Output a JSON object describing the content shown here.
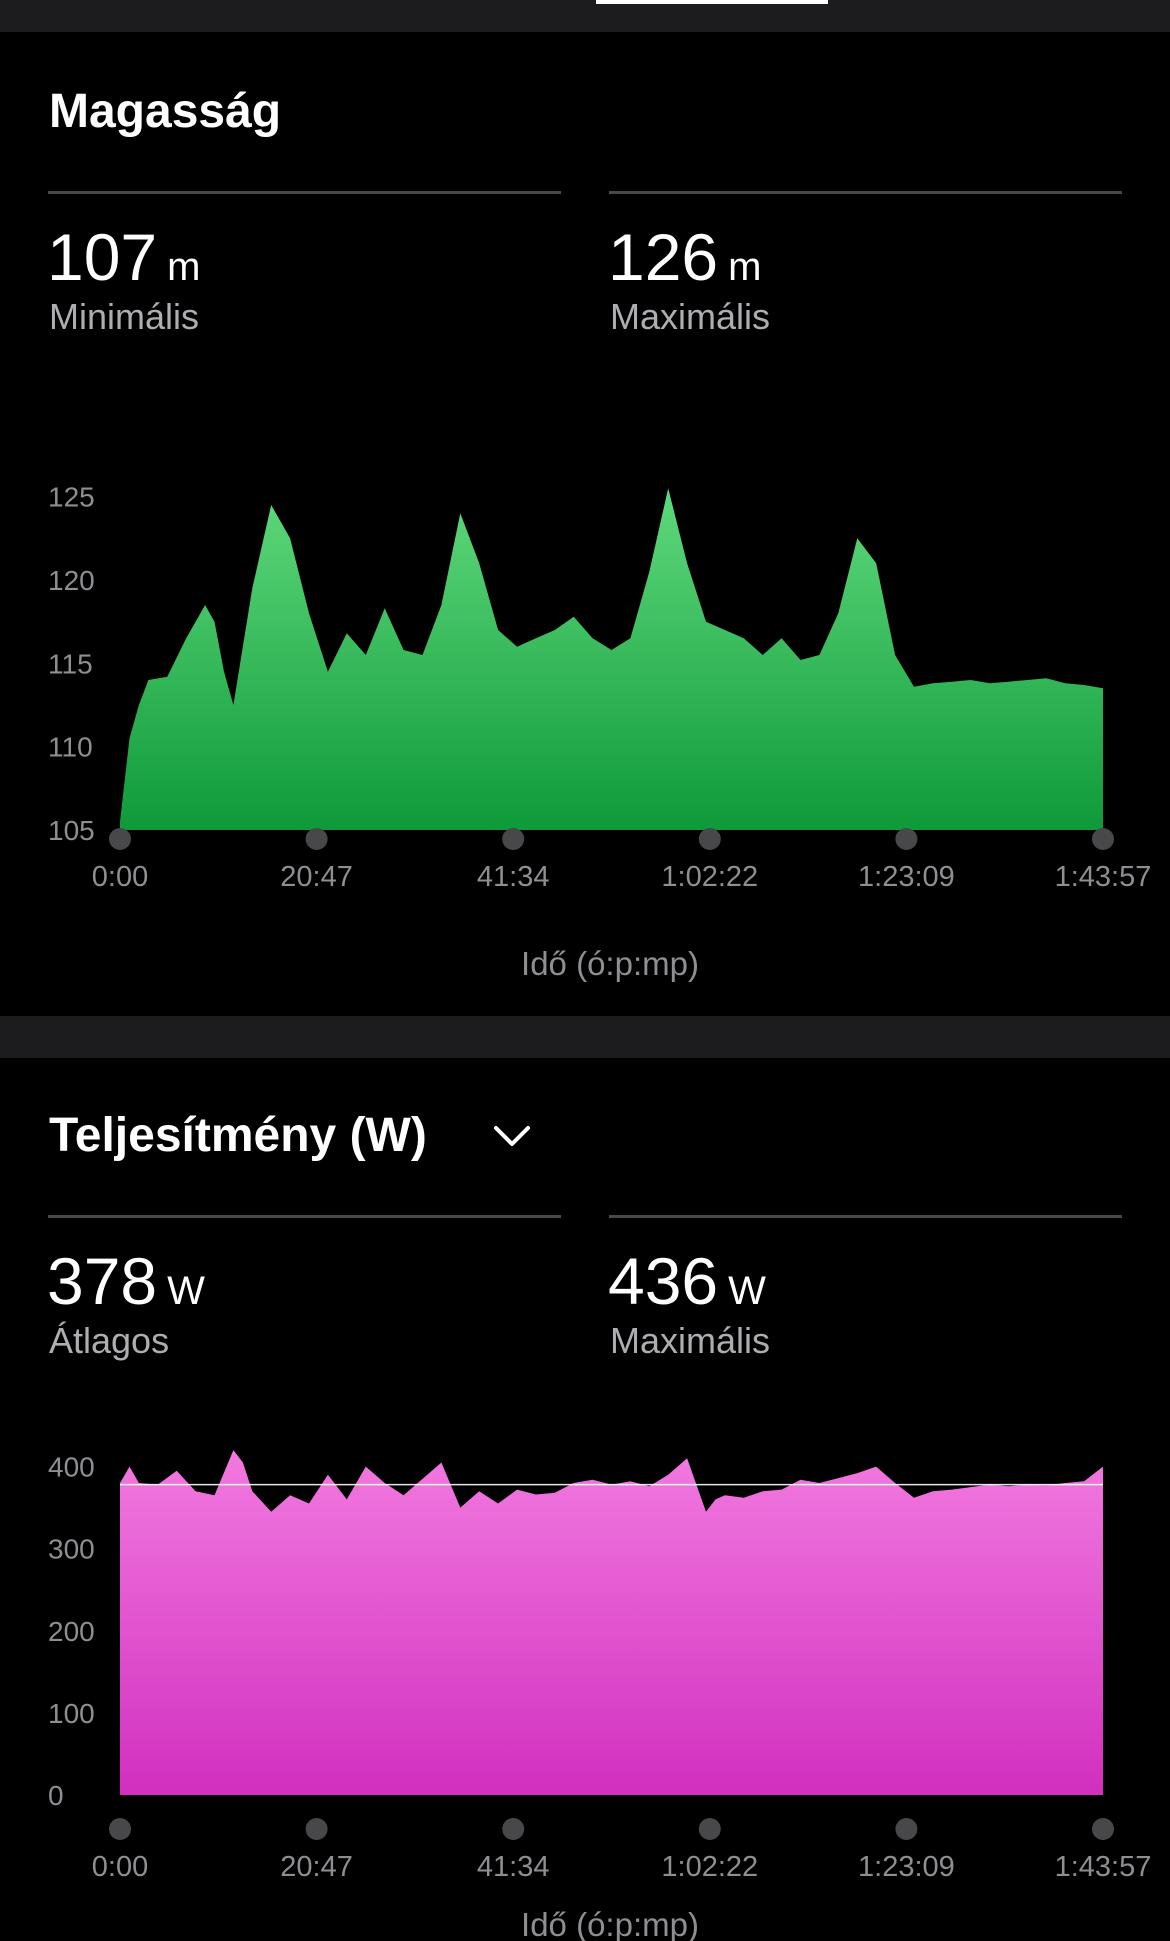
{
  "elevation": {
    "title": "Magasság",
    "stats": [
      {
        "value": "107",
        "unit": "m",
        "label": "Minimális"
      },
      {
        "value": "126",
        "unit": "m",
        "label": "Maximális"
      }
    ]
  },
  "power": {
    "title": "Teljesítmény (W)",
    "stats": [
      {
        "value": "378",
        "unit": "W",
        "label": "Átlagos"
      },
      {
        "value": "436",
        "unit": "W",
        "label": "Maximális"
      }
    ]
  },
  "colors": {
    "elevation_top": "#5fd97c",
    "elevation_bottom": "#0f9a3a",
    "power_top": "#f27ae0",
    "power_bottom": "#d12fbf"
  },
  "chart_data": [
    {
      "type": "area",
      "xlabel": "Idő (ó:p:mp)",
      "ylabel": "",
      "ylim": [
        105,
        126
      ],
      "yticks": [
        "105",
        "110",
        "115",
        "120",
        "125"
      ],
      "xticks": [
        "0:00",
        "20:47",
        "41:34",
        "1:02:22",
        "1:23:09",
        "1:43:57"
      ],
      "x": [
        0,
        1,
        2,
        3,
        5,
        7,
        9,
        10,
        11,
        12,
        14,
        16,
        18,
        20,
        22,
        24,
        26,
        28,
        30,
        32,
        34,
        36,
        38,
        40,
        42,
        44,
        46,
        48,
        50,
        52,
        54,
        56,
        58,
        60,
        62,
        64,
        66,
        68,
        70,
        72,
        74,
        76,
        78,
        80,
        82,
        84,
        86,
        88,
        90,
        92,
        94,
        96,
        98,
        100,
        102,
        104
      ],
      "values": [
        105.5,
        110.5,
        112.5,
        114,
        114.2,
        116.5,
        118.5,
        117.5,
        114.5,
        112.5,
        119.5,
        124.5,
        122.5,
        118,
        114.5,
        116.8,
        115.5,
        118.3,
        115.8,
        115.5,
        118.5,
        124,
        121,
        117,
        116,
        116.5,
        117,
        117.8,
        116.5,
        115.8,
        116.5,
        120.5,
        125.5,
        121,
        117.5,
        117,
        116.5,
        115.5,
        116.5,
        115.2,
        115.5,
        118,
        122.5,
        121,
        115.5,
        113.6,
        113.8,
        113.9,
        114,
        113.8,
        113.9,
        114,
        114.1,
        113.8,
        113.7,
        113.5
      ]
    },
    {
      "type": "area",
      "xlabel": "Idő (ó:p:mp)",
      "ylabel": "",
      "ylim": [
        0,
        436
      ],
      "yticks": [
        "0",
        "100",
        "200",
        "300",
        "400"
      ],
      "xticks": [
        "0:00",
        "20:47",
        "41:34",
        "1:02:22",
        "1:23:09",
        "1:43:57"
      ],
      "average": 378,
      "x": [
        0,
        1,
        2,
        4,
        6,
        8,
        10,
        12,
        13,
        14,
        16,
        18,
        20,
        22,
        24,
        26,
        28,
        30,
        32,
        34,
        36,
        38,
        40,
        42,
        44,
        46,
        48,
        50,
        52,
        54,
        56,
        58,
        60,
        62,
        63,
        64,
        66,
        68,
        70,
        72,
        74,
        76,
        78,
        80,
        82,
        84,
        86,
        88,
        90,
        92,
        94,
        96,
        98,
        100,
        102,
        104
      ],
      "values": [
        380,
        400,
        380,
        378,
        395,
        370,
        365,
        420,
        405,
        370,
        345,
        365,
        355,
        390,
        360,
        400,
        380,
        365,
        385,
        405,
        350,
        370,
        355,
        372,
        366,
        368,
        380,
        384,
        378,
        382,
        376,
        390,
        410,
        345,
        360,
        365,
        362,
        370,
        372,
        384,
        380,
        386,
        392,
        400,
        380,
        362,
        370,
        372,
        375,
        378,
        376,
        378,
        377,
        380,
        382,
        400
      ]
    }
  ]
}
